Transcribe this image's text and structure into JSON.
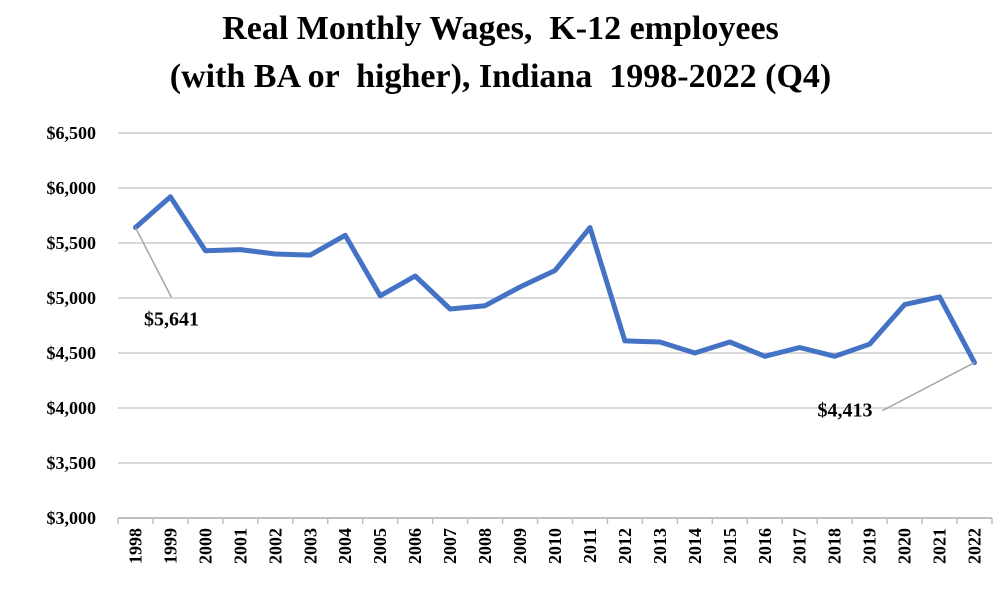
{
  "chart_data": {
    "type": "line",
    "title_line_1": "Real Monthly Wages,  K-12 employees",
    "title_line_2": "(with BA or  higher), Indiana  1998-2022 (Q4)",
    "xlabel": "",
    "ylabel": "",
    "categories": [
      "1998",
      "1999",
      "2000",
      "2001",
      "2002",
      "2003",
      "2004",
      "2005",
      "2006",
      "2007",
      "2008",
      "2009",
      "2010",
      "2011",
      "2012",
      "2013",
      "2014",
      "2015",
      "2016",
      "2017",
      "2018",
      "2019",
      "2020",
      "2021",
      "2022"
    ],
    "series": [
      {
        "values": [
          5641,
          5920,
          5430,
          5440,
          5400,
          5390,
          5570,
          5020,
          5200,
          4900,
          4930,
          5100,
          5250,
          5640,
          4610,
          4600,
          4500,
          4600,
          4470,
          4550,
          4470,
          4580,
          4940,
          5010,
          4413
        ],
        "color": "#4472C4"
      }
    ],
    "ylim": [
      3000,
      6500
    ],
    "yticks": [
      "$3,000",
      "$3,500",
      "$4,000",
      "$4,500",
      "$5,000",
      "$5,500",
      "$6,000",
      "$6,500"
    ],
    "grid": "horizontal",
    "annotations": [
      {
        "label": "$5,641",
        "category": "1998"
      },
      {
        "label": "$4,413",
        "category": "2022"
      }
    ]
  }
}
